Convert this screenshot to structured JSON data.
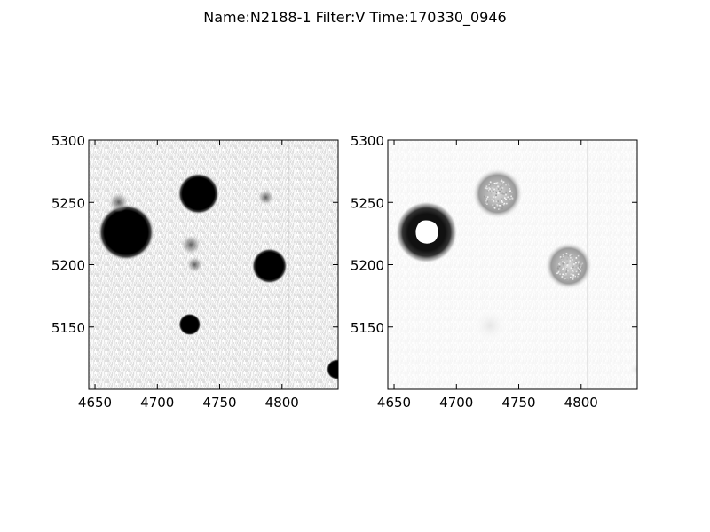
{
  "title": "Name:N2188-1 Filter:V Time:170330_0946",
  "chart_data": [
    {
      "type": "heatmap",
      "colormap": "gray_r",
      "xlim": [
        4645,
        4845
      ],
      "ylim": [
        5100,
        5300
      ],
      "xticks": [
        4650,
        4700,
        4750,
        4800
      ],
      "yticks": [
        5150,
        5200,
        5250,
        5300
      ],
      "stars": [
        {
          "x": 4675,
          "y": 5226,
          "r": 19,
          "kind": "solid"
        },
        {
          "x": 4733,
          "y": 5257,
          "r": 14,
          "kind": "solid"
        },
        {
          "x": 4790,
          "y": 5199,
          "r": 12,
          "kind": "solid"
        },
        {
          "x": 4726,
          "y": 5152,
          "r": 7.5,
          "kind": "solid"
        },
        {
          "x": 4844,
          "y": 5116,
          "r": 7,
          "kind": "solid"
        },
        {
          "x": 4727,
          "y": 5216,
          "r": 5,
          "kind": "faint"
        },
        {
          "x": 4730,
          "y": 5200,
          "r": 4,
          "kind": "faint"
        },
        {
          "x": 4787,
          "y": 5254,
          "r": 4,
          "kind": "faint"
        },
        {
          "x": 4669,
          "y": 5250,
          "r": 5,
          "kind": "faint"
        }
      ],
      "column_defect_x": 4805
    },
    {
      "type": "heatmap",
      "colormap": "gray_r",
      "xlim": [
        4645,
        4845
      ],
      "ylim": [
        5100,
        5300
      ],
      "xticks": [
        4650,
        4700,
        4750,
        4800
      ],
      "yticks": [
        5150,
        5200,
        5250,
        5300
      ],
      "stars": [
        {
          "x": 4676,
          "y": 5226,
          "r": 19,
          "kind": "saturated-ring"
        },
        {
          "x": 4733,
          "y": 5257,
          "r": 16,
          "kind": "hollow"
        },
        {
          "x": 4790,
          "y": 5199,
          "r": 15,
          "kind": "hollow"
        },
        {
          "x": 4727,
          "y": 5151,
          "r": 14,
          "kind": "ghost"
        },
        {
          "x": 4844,
          "y": 5116,
          "r": 6,
          "kind": "ghost"
        }
      ],
      "column_defect_x": 4805
    }
  ]
}
